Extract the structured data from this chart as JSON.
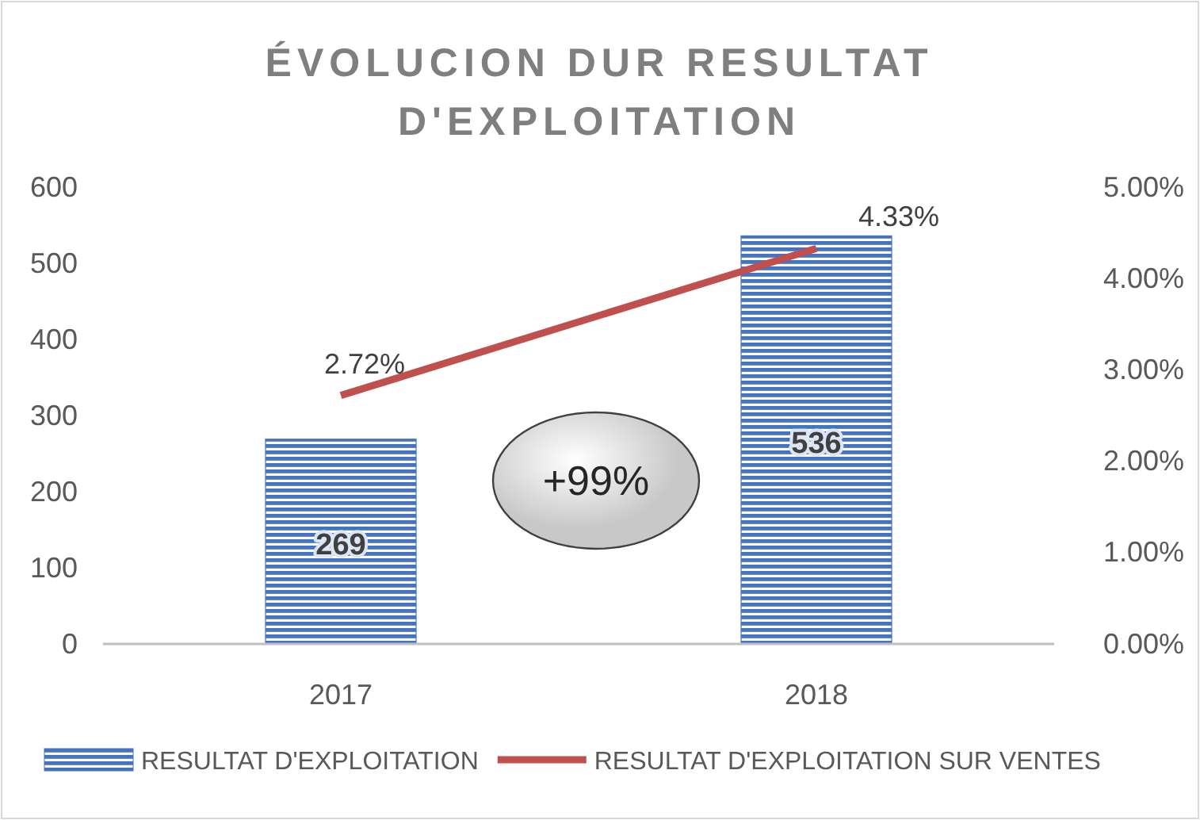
{
  "chart_data": {
    "type": "bar",
    "title": "ÉVOLUCION DUR RESULTAT D'EXPLOITATION",
    "categories": [
      "2017",
      "2018"
    ],
    "series": [
      {
        "name": "RESULTAT D'EXPLOITATION",
        "color": "#4472c4",
        "values": [
          269,
          536
        ],
        "value_labels": [
          "269",
          "536"
        ]
      },
      {
        "name": "RESULTAT D'EXPLOITATION SUR VENTES",
        "type": "line",
        "axis": "y2",
        "color": "#c0504d",
        "values": [
          2.72,
          4.33
        ],
        "value_labels": [
          "2.72%",
          "4.33%"
        ]
      }
    ],
    "ylim": [
      0,
      600
    ],
    "yticks": [
      0,
      100,
      200,
      300,
      400,
      500,
      600
    ],
    "y2lim": [
      0,
      5
    ],
    "y2ticks": [
      {
        "value": 0,
        "label": "0.00%"
      },
      {
        "value": 1,
        "label": "1.00%"
      },
      {
        "value": 2,
        "label": "2.00%"
      },
      {
        "value": 3,
        "label": "3.00%"
      },
      {
        "value": 4,
        "label": "4.00%"
      },
      {
        "value": 5,
        "label": "5.00%"
      }
    ],
    "annotations": [
      "+99%"
    ],
    "legend": "bottom",
    "grid": false,
    "marker": "none",
    "line_style": "solid"
  }
}
